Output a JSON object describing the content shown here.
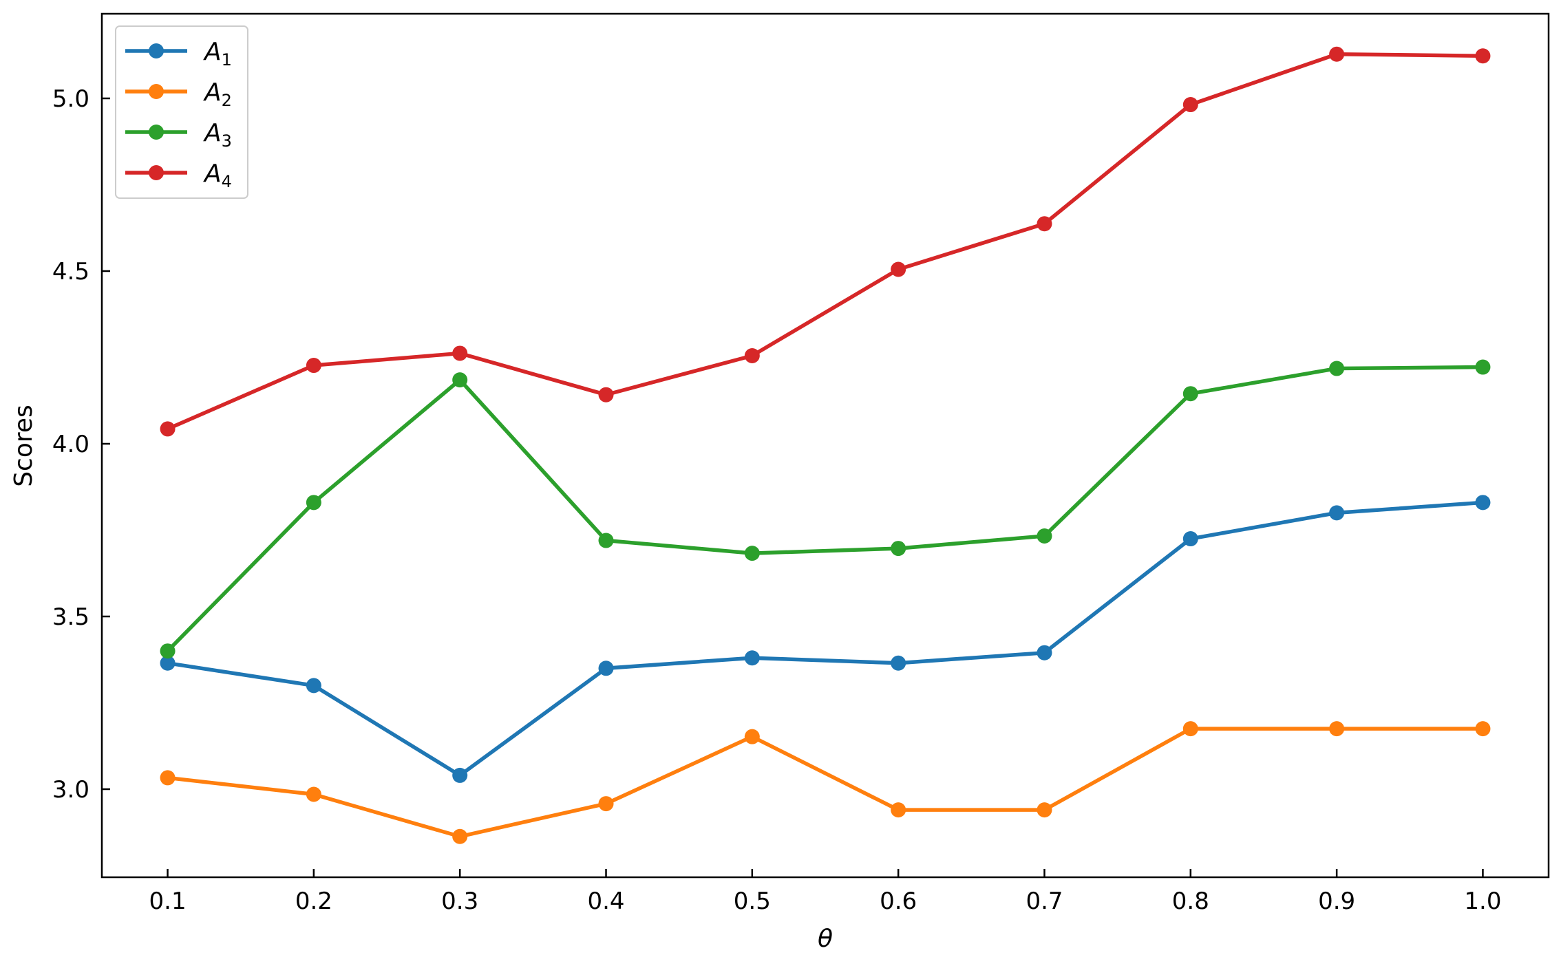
{
  "chart_data": {
    "type": "line",
    "xlabel": "θ",
    "ylabel": "Scores",
    "x": [
      0.1,
      0.2,
      0.3,
      0.4,
      0.5,
      0.6,
      0.7,
      0.8,
      0.9,
      1.0
    ],
    "x_tick_labels": [
      "0.1",
      "0.2",
      "0.3",
      "0.4",
      "0.5",
      "0.6",
      "0.7",
      "0.8",
      "0.9",
      "1.0"
    ],
    "y_ticks": [
      3.0,
      3.5,
      4.0,
      4.5,
      5.0
    ],
    "y_tick_labels": [
      "3.0",
      "3.5",
      "4.0",
      "4.5",
      "5.0"
    ],
    "xlim": [
      0.055,
      1.045
    ],
    "ylim": [
      2.745,
      5.245
    ],
    "grid": false,
    "legend_position": "top-left",
    "series": [
      {
        "name": "A",
        "subscript": "1",
        "color": "#1f77b4",
        "values": [
          3.365,
          3.3,
          3.04,
          3.35,
          3.38,
          3.365,
          3.395,
          3.725,
          3.8,
          3.83
        ]
      },
      {
        "name": "A",
        "subscript": "2",
        "color": "#ff7f0e",
        "values": [
          3.033,
          2.985,
          2.863,
          2.958,
          3.152,
          2.94,
          2.94,
          3.175,
          3.175,
          3.175
        ]
      },
      {
        "name": "A",
        "subscript": "3",
        "color": "#2ca02c",
        "values": [
          3.4,
          3.83,
          4.185,
          3.72,
          3.683,
          3.697,
          3.733,
          4.145,
          4.218,
          4.222
        ]
      },
      {
        "name": "A",
        "subscript": "4",
        "color": "#d62728",
        "values": [
          4.043,
          4.227,
          4.262,
          4.142,
          4.255,
          4.505,
          4.637,
          4.982,
          5.128,
          5.123
        ]
      }
    ]
  }
}
